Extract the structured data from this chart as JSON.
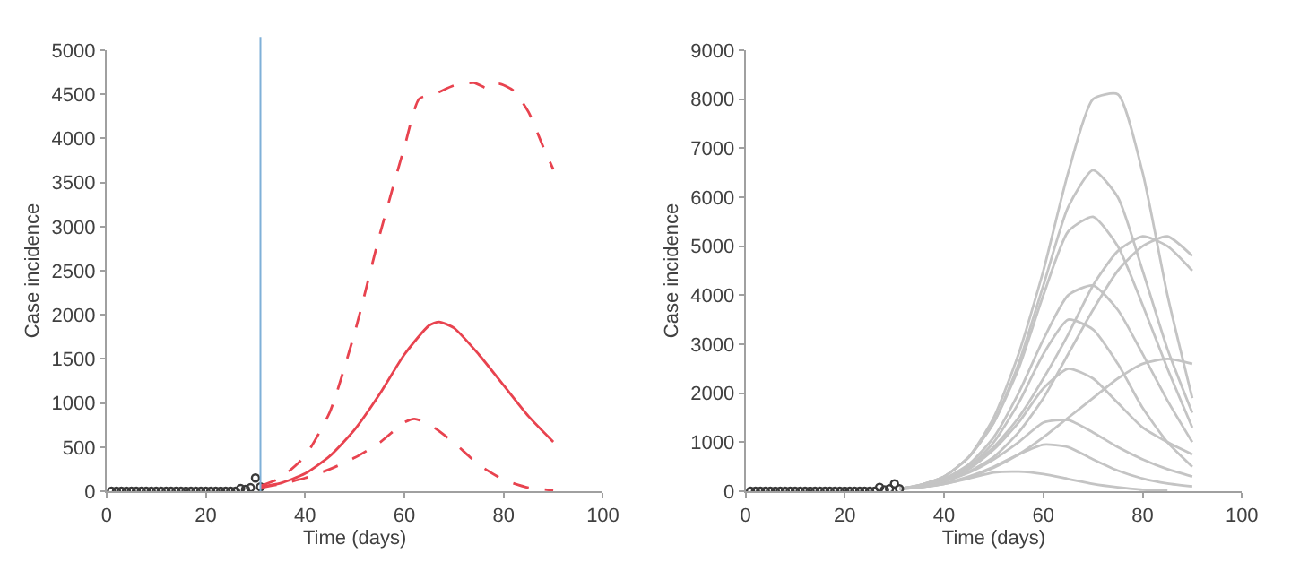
{
  "chart_data": [
    {
      "type": "line",
      "xlabel": "Time (days)",
      "ylabel": "Case incidence",
      "xlim": [
        0,
        100
      ],
      "xticks": [
        0,
        20,
        40,
        60,
        80,
        100
      ],
      "ylim": [
        0,
        5000
      ],
      "yticks": [
        0,
        500,
        1000,
        1500,
        2000,
        2500,
        3000,
        3500,
        4000,
        4500,
        5000
      ],
      "ref_lines": [
        {
          "axis": "x",
          "value": 31,
          "color": "#7fb0d8"
        }
      ],
      "series": [
        {
          "type": "scatter",
          "marker": "circle",
          "color": "#3a3a3a",
          "x": [
            1,
            2,
            3,
            4,
            5,
            6,
            7,
            8,
            9,
            10,
            11,
            12,
            13,
            14,
            15,
            16,
            17,
            18,
            19,
            20,
            21,
            22,
            23,
            24,
            25,
            26,
            27,
            28,
            29,
            30,
            31
          ],
          "values": [
            0,
            0,
            0,
            0,
            0,
            0,
            0,
            0,
            0,
            0,
            0,
            0,
            0,
            0,
            0,
            0,
            0,
            0,
            0,
            0,
            0,
            0,
            0,
            0,
            0,
            0,
            30,
            20,
            40,
            150,
            50
          ]
        },
        {
          "type": "line",
          "line_style": "solid",
          "color": "#e8434f",
          "x": [
            31,
            35,
            40,
            45,
            50,
            55,
            60,
            65,
            67,
            70,
            75,
            80,
            85,
            90
          ],
          "values": [
            50,
            90,
            200,
            400,
            700,
            1100,
            1550,
            1880,
            1920,
            1850,
            1550,
            1200,
            850,
            560
          ]
        },
        {
          "type": "line",
          "line_style": "dashed",
          "color": "#e8434f",
          "x": [
            31,
            35,
            40,
            45,
            50,
            55,
            60,
            63,
            66,
            70,
            74,
            77,
            79,
            82,
            85,
            88,
            90
          ],
          "values": [
            60,
            150,
            400,
            900,
            1800,
            2900,
            3900,
            4450,
            4500,
            4600,
            4630,
            4560,
            4620,
            4540,
            4300,
            3900,
            3650
          ]
        },
        {
          "type": "line",
          "line_style": "dashed",
          "color": "#e8434f",
          "x": [
            31,
            35,
            40,
            45,
            50,
            55,
            60,
            62,
            65,
            70,
            75,
            80,
            85,
            90
          ],
          "values": [
            40,
            80,
            150,
            250,
            380,
            550,
            780,
            820,
            760,
            550,
            300,
            130,
            40,
            10
          ]
        }
      ]
    },
    {
      "type": "line",
      "xlabel": "Time (days)",
      "ylabel": "Case incidence",
      "xlim": [
        0,
        100
      ],
      "xticks": [
        0,
        20,
        40,
        60,
        80,
        100
      ],
      "ylim": [
        0,
        9000
      ],
      "yticks": [
        0,
        1000,
        2000,
        3000,
        4000,
        5000,
        6000,
        7000,
        8000,
        9000
      ],
      "series": [
        {
          "type": "line",
          "line_style": "solid",
          "color": "#c4c4c4",
          "x": [
            31,
            35,
            40,
            45,
            50,
            55,
            60,
            65,
            70,
            75,
            80,
            85,
            90
          ],
          "values": [
            50,
            120,
            300,
            700,
            1500,
            2800,
            4500,
            6500,
            8000,
            8100,
            6500,
            4000,
            1900
          ]
        },
        {
          "type": "line",
          "line_style": "solid",
          "color": "#c4c4c4",
          "x": [
            31,
            35,
            40,
            45,
            50,
            55,
            60,
            65,
            70,
            75,
            80,
            85,
            90
          ],
          "values": [
            50,
            120,
            300,
            700,
            1400,
            2600,
            4200,
            5800,
            6550,
            6000,
            4500,
            2900,
            1600
          ]
        },
        {
          "type": "line",
          "line_style": "solid",
          "color": "#c4c4c4",
          "x": [
            31,
            35,
            40,
            45,
            50,
            55,
            60,
            65,
            70,
            75,
            80,
            85,
            90
          ],
          "values": [
            50,
            120,
            300,
            700,
            1400,
            2500,
            4000,
            5300,
            5600,
            5000,
            3800,
            2500,
            1300
          ]
        },
        {
          "type": "line",
          "line_style": "solid",
          "color": "#c4c4c4",
          "x": [
            31,
            35,
            40,
            45,
            50,
            55,
            60,
            65,
            70,
            75,
            80,
            85,
            90
          ],
          "values": [
            50,
            100,
            250,
            500,
            900,
            1500,
            2300,
            3200,
            4200,
            4900,
            5200,
            5000,
            4500
          ]
        },
        {
          "type": "line",
          "line_style": "solid",
          "color": "#c4c4c4",
          "x": [
            31,
            35,
            40,
            45,
            50,
            55,
            60,
            65,
            70,
            75,
            80,
            85,
            90
          ],
          "values": [
            50,
            100,
            200,
            400,
            700,
            1200,
            1900,
            2800,
            3700,
            4500,
            5000,
            5200,
            4800
          ]
        },
        {
          "type": "line",
          "line_style": "solid",
          "color": "#c4c4c4",
          "x": [
            31,
            35,
            40,
            45,
            50,
            55,
            60,
            65,
            70,
            75,
            80,
            85,
            90
          ],
          "values": [
            50,
            110,
            250,
            550,
            1100,
            2000,
            3100,
            4000,
            4200,
            3700,
            2800,
            1850,
            1000
          ]
        },
        {
          "type": "line",
          "line_style": "solid",
          "color": "#c4c4c4",
          "x": [
            31,
            35,
            40,
            45,
            50,
            55,
            60,
            65,
            70,
            75,
            80,
            85,
            90
          ],
          "values": [
            50,
            100,
            250,
            500,
            1000,
            1800,
            2800,
            3500,
            3300,
            2600,
            1700,
            1000,
            500
          ]
        },
        {
          "type": "line",
          "line_style": "solid",
          "color": "#c4c4c4",
          "x": [
            31,
            35,
            40,
            45,
            50,
            55,
            60,
            65,
            70,
            75,
            80,
            85,
            90
          ],
          "values": [
            50,
            100,
            220,
            450,
            850,
            1400,
            2100,
            2500,
            2300,
            1800,
            1300,
            1000,
            750
          ]
        },
        {
          "type": "line",
          "line_style": "solid",
          "color": "#c4c4c4",
          "x": [
            31,
            35,
            40,
            45,
            50,
            55,
            60,
            65,
            70,
            75,
            80,
            85,
            90
          ],
          "values": [
            50,
            90,
            200,
            380,
            650,
            1000,
            1400,
            1450,
            1200,
            900,
            650,
            450,
            300
          ]
        },
        {
          "type": "line",
          "line_style": "solid",
          "color": "#c4c4c4",
          "x": [
            31,
            35,
            40,
            45,
            50,
            55,
            60,
            65,
            70,
            75,
            80,
            85,
            90
          ],
          "values": [
            60,
            80,
            160,
            300,
            500,
            750,
            950,
            900,
            650,
            420,
            260,
            160,
            100
          ]
        },
        {
          "type": "line",
          "line_style": "solid",
          "color": "#c4c4c4",
          "x": [
            31,
            35,
            40,
            45,
            50,
            55,
            60,
            65,
            70,
            75,
            80,
            85
          ],
          "values": [
            40,
            80,
            150,
            260,
            380,
            400,
            350,
            250,
            150,
            80,
            30,
            10
          ]
        },
        {
          "type": "line",
          "line_style": "solid",
          "color": "#c4c4c4",
          "x": [
            31,
            35,
            40,
            45,
            50,
            55,
            60,
            65,
            70,
            75,
            80,
            85,
            90
          ],
          "values": [
            50,
            80,
            150,
            280,
            480,
            750,
            1100,
            1500,
            1900,
            2300,
            2600,
            2700,
            2600
          ]
        },
        {
          "type": "scatter",
          "marker": "circle",
          "color": "#3a3a3a",
          "x": [
            1,
            2,
            3,
            4,
            5,
            6,
            7,
            8,
            9,
            10,
            11,
            12,
            13,
            14,
            15,
            16,
            17,
            18,
            19,
            20,
            21,
            22,
            23,
            24,
            25,
            26,
            27,
            28,
            29,
            30,
            31
          ],
          "values": [
            0,
            0,
            0,
            0,
            0,
            0,
            0,
            0,
            0,
            0,
            0,
            0,
            0,
            0,
            0,
            0,
            0,
            0,
            0,
            0,
            0,
            0,
            0,
            0,
            0,
            0,
            80,
            30,
            50,
            150,
            50
          ]
        }
      ]
    }
  ]
}
